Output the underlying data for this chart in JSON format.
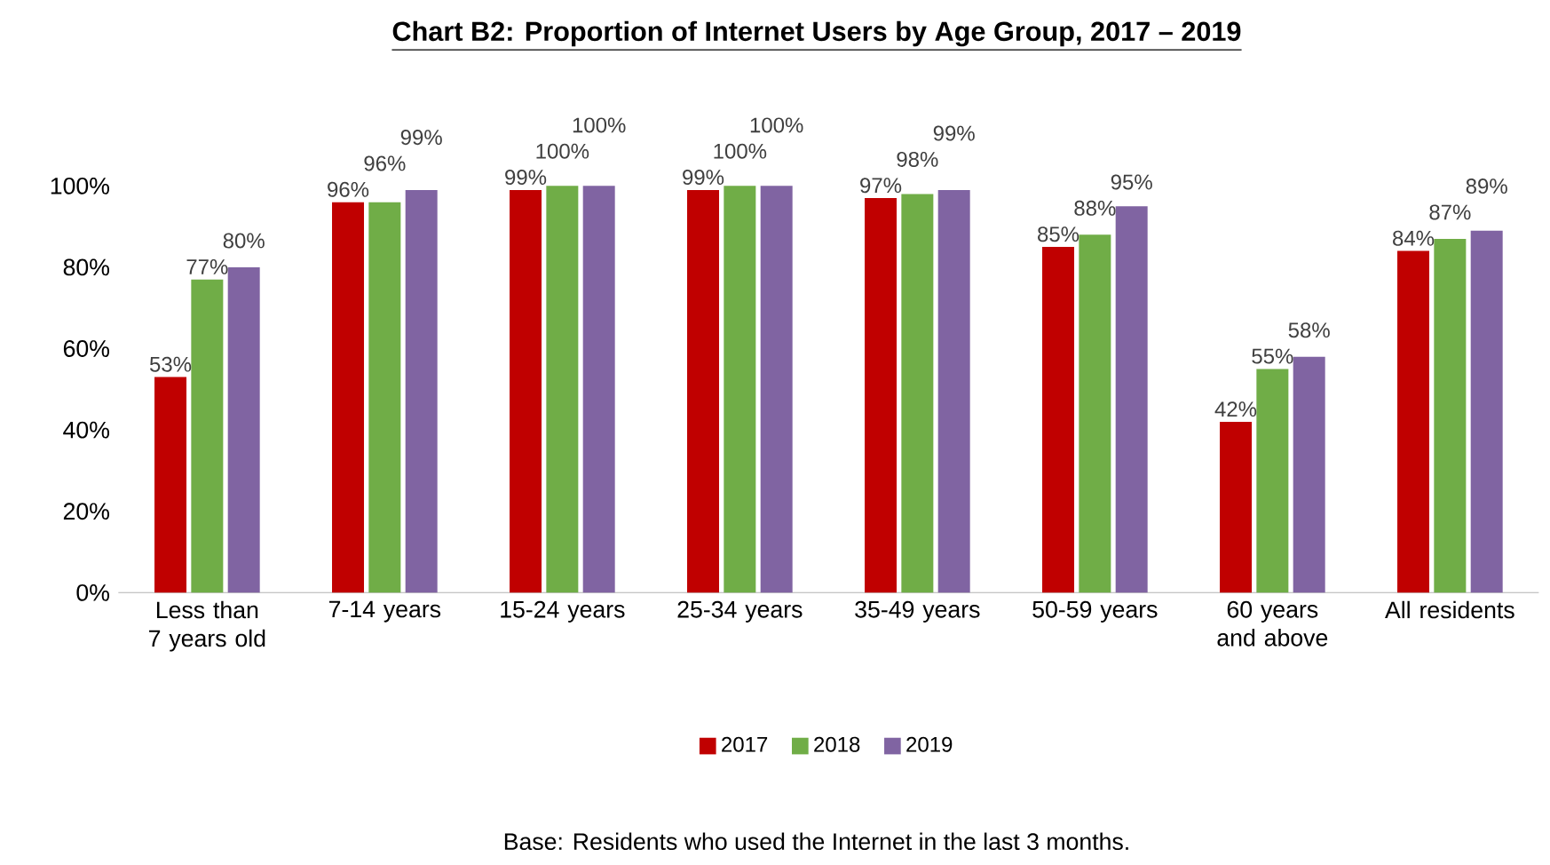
{
  "chart_data": {
    "type": "bar",
    "title": "Chart B2: Proportion of Internet Users by Age Group, 2017 – 2019",
    "categories": [
      "Less than 7 years old",
      "7-14 years",
      "15-24 years",
      "25-34 years",
      "35-49 years",
      "50-59 years",
      "60 years and above",
      "All residents"
    ],
    "series": [
      {
        "name": "2017",
        "color": "#c00000",
        "values": [
          53,
          96,
          99,
          99,
          97,
          85,
          42,
          84
        ],
        "value_labels": [
          "53%",
          "96%",
          "99%",
          "99%",
          "97%",
          "85%",
          "42%",
          "84%"
        ]
      },
      {
        "name": "2018",
        "color": "#70ad47",
        "values": [
          77,
          96,
          100,
          100,
          98,
          88,
          55,
          87
        ],
        "value_labels": [
          "77%",
          "96%",
          "100%",
          "100%",
          "98%",
          "88%",
          "55%",
          "87%"
        ]
      },
      {
        "name": "2019",
        "color": "#8064a2",
        "values": [
          80,
          99,
          100,
          100,
          99,
          95,
          58,
          89
        ],
        "value_labels": [
          "80%",
          "99%",
          "100%",
          "100%",
          "99%",
          "95%",
          "58%",
          "89%"
        ]
      }
    ],
    "ylim": [
      0,
      100
    ],
    "yticks": [
      {
        "value": 0,
        "label": "0%"
      },
      {
        "value": 20,
        "label": "20%"
      },
      {
        "value": 40,
        "label": "40%"
      },
      {
        "value": 60,
        "label": "60%"
      },
      {
        "value": 80,
        "label": "80%"
      },
      {
        "value": 100,
        "label": "100%"
      }
    ],
    "grid": false,
    "legend": "bottom",
    "annotations": [
      "Base: Residents who used the Internet in the last 3 months."
    ]
  }
}
